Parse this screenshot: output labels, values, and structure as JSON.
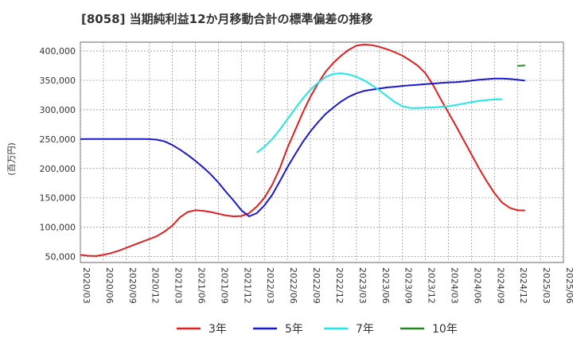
{
  "chart_data": {
    "type": "line",
    "title": "[8058]  当期純利益12か月移動合計の標準偏差の推移",
    "ylabel": "(百万円)",
    "xlabel": "",
    "ylim": [
      40000,
      415000
    ],
    "yticks": [
      "50,000",
      "100,000",
      "150,000",
      "200,000",
      "250,000",
      "300,000",
      "350,000",
      "400,000"
    ],
    "ytick_values": [
      50000,
      100000,
      150000,
      200000,
      250000,
      300000,
      350000,
      400000
    ],
    "xticks": [
      "2020/03",
      "2020/06",
      "2020/09",
      "2020/12",
      "2021/03",
      "2021/06",
      "2021/09",
      "2021/12",
      "2022/03",
      "2022/06",
      "2022/09",
      "2022/12",
      "2023/03",
      "2023/06",
      "2023/09",
      "2023/12",
      "2024/03",
      "2024/06",
      "2024/09",
      "2024/12",
      "2025/03",
      "2025/06"
    ],
    "grid": true,
    "legend_position": "bottom",
    "series": [
      {
        "name": "3年",
        "color": "#e02020",
        "points": [
          [
            "2020/03",
            53000
          ],
          [
            "2020/04",
            51500
          ],
          [
            "2020/05",
            51000
          ],
          [
            "2020/06",
            53000
          ],
          [
            "2020/07",
            56000
          ],
          [
            "2020/08",
            60000
          ],
          [
            "2020/09",
            65000
          ],
          [
            "2020/10",
            70000
          ],
          [
            "2020/11",
            75000
          ],
          [
            "2020/12",
            80000
          ],
          [
            "2021/01",
            85000
          ],
          [
            "2021/02",
            93000
          ],
          [
            "2021/03",
            103000
          ],
          [
            "2021/04",
            117000
          ],
          [
            "2021/05",
            126000
          ],
          [
            "2021/06",
            129000
          ],
          [
            "2021/07",
            128000
          ],
          [
            "2021/08",
            126000
          ],
          [
            "2021/09",
            123000
          ],
          [
            "2021/10",
            120000
          ],
          [
            "2021/11",
            118500
          ],
          [
            "2021/12",
            119000
          ],
          [
            "2022/01",
            124000
          ],
          [
            "2022/02",
            135000
          ],
          [
            "2022/03",
            150000
          ],
          [
            "2022/04",
            172000
          ],
          [
            "2022/05",
            200000
          ],
          [
            "2022/06",
            235000
          ],
          [
            "2022/07",
            265000
          ],
          [
            "2022/08",
            295000
          ],
          [
            "2022/09",
            322000
          ],
          [
            "2022/10",
            345000
          ],
          [
            "2022/11",
            365000
          ],
          [
            "2022/12",
            380000
          ],
          [
            "2023/01",
            392000
          ],
          [
            "2023/02",
            402000
          ],
          [
            "2023/03",
            409000
          ],
          [
            "2023/04",
            411000
          ],
          [
            "2023/05",
            410000
          ],
          [
            "2023/06",
            407000
          ],
          [
            "2023/07",
            403000
          ],
          [
            "2023/08",
            398000
          ],
          [
            "2023/09",
            392000
          ],
          [
            "2023/10",
            384000
          ],
          [
            "2023/11",
            375000
          ],
          [
            "2023/12",
            362000
          ],
          [
            "2024/01",
            342000
          ],
          [
            "2024/02",
            318000
          ],
          [
            "2024/03",
            295000
          ],
          [
            "2024/04",
            272000
          ],
          [
            "2024/05",
            248000
          ],
          [
            "2024/06",
            224000
          ],
          [
            "2024/07",
            200000
          ],
          [
            "2024/08",
            178000
          ],
          [
            "2024/09",
            158000
          ],
          [
            "2024/10",
            142000
          ],
          [
            "2024/11",
            133000
          ],
          [
            "2024/12",
            129000
          ],
          [
            "2025/01",
            128500
          ]
        ]
      },
      {
        "name": "5年",
        "color": "#1a1acc",
        "points": [
          [
            "2020/03",
            250000
          ],
          [
            "2020/04",
            250200
          ],
          [
            "2020/05",
            250300
          ],
          [
            "2020/06",
            250300
          ],
          [
            "2020/07",
            250200
          ],
          [
            "2020/08",
            250200
          ],
          [
            "2020/09",
            250200
          ],
          [
            "2020/10",
            250200
          ],
          [
            "2020/11",
            250200
          ],
          [
            "2020/12",
            250000
          ],
          [
            "2021/01",
            249000
          ],
          [
            "2021/02",
            246000
          ],
          [
            "2021/03",
            240000
          ],
          [
            "2021/04",
            232000
          ],
          [
            "2021/05",
            223000
          ],
          [
            "2021/06",
            213000
          ],
          [
            "2021/07",
            202000
          ],
          [
            "2021/08",
            190000
          ],
          [
            "2021/09",
            176000
          ],
          [
            "2021/10",
            160000
          ],
          [
            "2021/11",
            145000
          ],
          [
            "2021/12",
            129000
          ],
          [
            "2022/01",
            118500
          ],
          [
            "2022/02",
            124000
          ],
          [
            "2022/03",
            137000
          ],
          [
            "2022/04",
            155000
          ],
          [
            "2022/05",
            178000
          ],
          [
            "2022/06",
            202000
          ],
          [
            "2022/07",
            224000
          ],
          [
            "2022/08",
            245000
          ],
          [
            "2022/09",
            263000
          ],
          [
            "2022/10",
            279000
          ],
          [
            "2022/11",
            293000
          ],
          [
            "2022/12",
            304000
          ],
          [
            "2023/01",
            314000
          ],
          [
            "2023/02",
            322000
          ],
          [
            "2023/03",
            328000
          ],
          [
            "2023/04",
            332000
          ],
          [
            "2023/05",
            334000
          ],
          [
            "2023/06",
            336000
          ],
          [
            "2023/07",
            338000
          ],
          [
            "2023/08",
            339000
          ],
          [
            "2023/09",
            340500
          ],
          [
            "2023/10",
            341500
          ],
          [
            "2023/11",
            342500
          ],
          [
            "2023/12",
            343500
          ],
          [
            "2024/01",
            344500
          ],
          [
            "2024/02",
            345500
          ],
          [
            "2024/03",
            346500
          ],
          [
            "2024/04",
            347000
          ],
          [
            "2024/05",
            348000
          ],
          [
            "2024/06",
            349500
          ],
          [
            "2024/07",
            351000
          ],
          [
            "2024/08",
            352000
          ],
          [
            "2024/09",
            353000
          ],
          [
            "2024/10",
            353000
          ],
          [
            "2024/11",
            352500
          ],
          [
            "2024/12",
            351000
          ],
          [
            "2025/01",
            349500
          ]
        ]
      },
      {
        "name": "7年",
        "color": "#20e8e8",
        "points": [
          [
            "2022/02",
            227000
          ],
          [
            "2022/03",
            237000
          ],
          [
            "2022/04",
            250000
          ],
          [
            "2022/05",
            266000
          ],
          [
            "2022/06",
            284000
          ],
          [
            "2022/07",
            302000
          ],
          [
            "2022/08",
            319000
          ],
          [
            "2022/09",
            334000
          ],
          [
            "2022/10",
            346000
          ],
          [
            "2022/11",
            356000
          ],
          [
            "2022/12",
            361000
          ],
          [
            "2023/01",
            362000
          ],
          [
            "2023/02",
            360000
          ],
          [
            "2023/03",
            356000
          ],
          [
            "2023/04",
            350000
          ],
          [
            "2023/05",
            342000
          ],
          [
            "2023/06",
            333000
          ],
          [
            "2023/07",
            323000
          ],
          [
            "2023/08",
            313000
          ],
          [
            "2023/09",
            306000
          ],
          [
            "2023/10",
            303000
          ],
          [
            "2023/11",
            303000
          ],
          [
            "2023/12",
            303500
          ],
          [
            "2024/01",
            304000
          ],
          [
            "2024/02",
            305000
          ],
          [
            "2024/03",
            306000
          ],
          [
            "2024/04",
            308000
          ],
          [
            "2024/05",
            310500
          ],
          [
            "2024/06",
            313000
          ],
          [
            "2024/07",
            315000
          ],
          [
            "2024/08",
            316500
          ],
          [
            "2024/09",
            317500
          ],
          [
            "2024/10",
            318000
          ]
        ]
      },
      {
        "name": "10年",
        "color": "#228822",
        "points": [
          [
            "2024/12",
            374500
          ],
          [
            "2025/01",
            375500
          ]
        ]
      }
    ]
  }
}
